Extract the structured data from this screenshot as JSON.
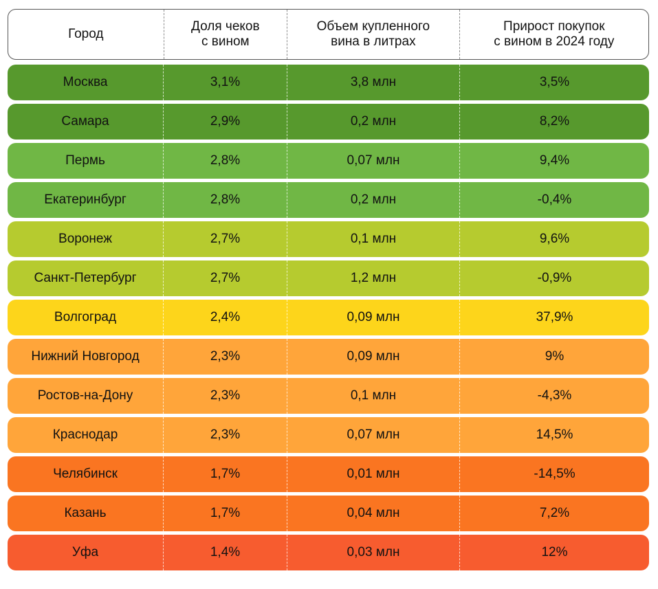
{
  "headers": [
    [
      "Город"
    ],
    [
      "Доля чеков",
      "с вином"
    ],
    [
      "Объем купленного",
      "вина в литрах"
    ],
    [
      "Прирост покупок",
      "с вином в 2024 году"
    ]
  ],
  "rows": [
    {
      "city": "Москва",
      "share": "3,1%",
      "volume": "3,8 млн",
      "growth": "3,5%",
      "color": "#57992d"
    },
    {
      "city": "Самара",
      "share": "2,9%",
      "volume": "0,2 млн",
      "growth": "8,2%",
      "color": "#57992d"
    },
    {
      "city": "Пермь",
      "share": "2,8%",
      "volume": "0,07 млн",
      "growth": "9,4%",
      "color": "#70b745"
    },
    {
      "city": "Екатеринбург",
      "share": "2,8%",
      "volume": "0,2 млн",
      "growth": "-0,4%",
      "color": "#70b745"
    },
    {
      "city": "Воронеж",
      "share": "2,7%",
      "volume": "0,1 млн",
      "growth": "9,6%",
      "color": "#b6cb2f"
    },
    {
      "city": "Санкт-Петербург",
      "share": "2,7%",
      "volume": "1,2 млн",
      "growth": "-0,9%",
      "color": "#b6cb2f"
    },
    {
      "city": "Волгоград",
      "share": "2,4%",
      "volume": "0,09 млн",
      "growth": "37,9%",
      "color": "#fdd51b"
    },
    {
      "city": "Нижний Новгород",
      "share": "2,3%",
      "volume": "0,09 млн",
      "growth": "9%",
      "color": "#ffa53a"
    },
    {
      "city": "Ростов-на-Дону",
      "share": "2,3%",
      "volume": "0,1 млн",
      "growth": "-4,3%",
      "color": "#ffa53a"
    },
    {
      "city": "Краснодар",
      "share": "2,3%",
      "volume": "0,07 млн",
      "growth": "14,5%",
      "color": "#ffa53a"
    },
    {
      "city": "Челябинск",
      "share": "1,7%",
      "volume": "0,01 млн",
      "growth": "-14,5%",
      "color": "#fa7521"
    },
    {
      "city": "Казань",
      "share": "1,7%",
      "volume": "0,04 млн",
      "growth": "7,2%",
      "color": "#fa7521"
    },
    {
      "city": "Уфа",
      "share": "1,4%",
      "volume": "0,03 млн",
      "growth": "12%",
      "color": "#f75c2f"
    }
  ]
}
